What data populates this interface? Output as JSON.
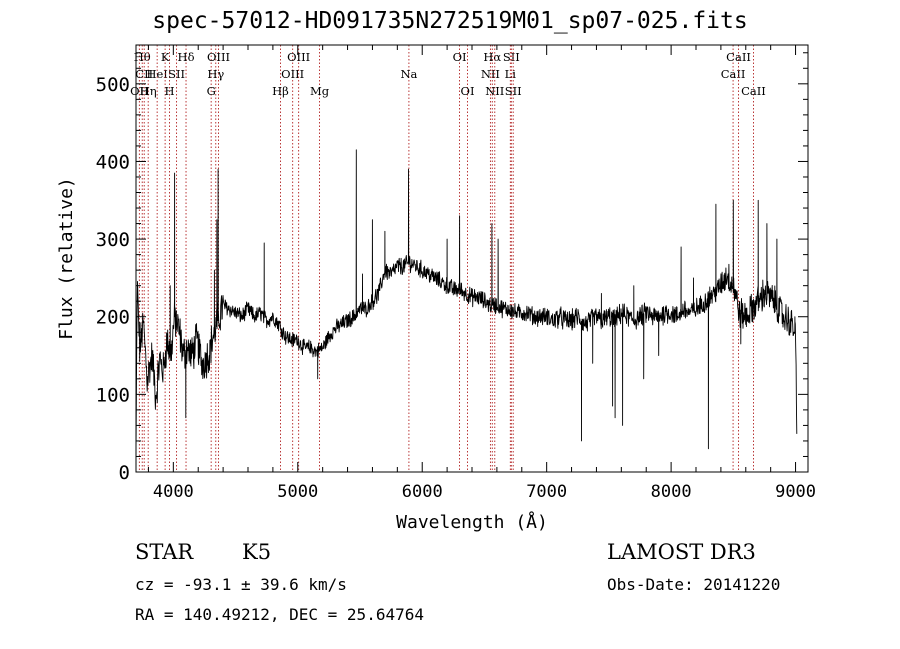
{
  "chart_data": {
    "type": "line",
    "title": "spec-57012-HD091735N272519M01_sp07-025.fits",
    "xlabel": "Wavelength (Å)",
    "ylabel": "Flux (relative)",
    "xlim": [
      3700,
      9100
    ],
    "ylim": [
      0,
      550
    ],
    "x_ticks": [
      4000,
      5000,
      6000,
      7000,
      8000,
      9000
    ],
    "x_tick_labels": [
      "4000",
      "5000",
      "6000",
      "7000",
      "8000",
      "9000"
    ],
    "y_ticks": [
      0,
      100,
      200,
      300,
      400,
      500
    ],
    "y_tick_labels": [
      "0",
      "100",
      "200",
      "300",
      "400",
      "500"
    ],
    "grid": false,
    "line_color": "#000000",
    "marker_color": "#b22222",
    "anchors": [
      [
        3700,
        20
      ],
      [
        3710,
        240
      ],
      [
        3730,
        160
      ],
      [
        3760,
        190
      ],
      [
        3790,
        120
      ],
      [
        3830,
        150
      ],
      [
        3860,
        95
      ],
      [
        3890,
        145
      ],
      [
        3920,
        130
      ],
      [
        3950,
        170
      ],
      [
        3980,
        150
      ],
      [
        4010,
        200
      ],
      [
        4050,
        180
      ],
      [
        4080,
        150
      ],
      [
        4110,
        160
      ],
      [
        4150,
        150
      ],
      [
        4190,
        170
      ],
      [
        4230,
        140
      ],
      [
        4260,
        145
      ],
      [
        4290,
        155
      ],
      [
        4320,
        175
      ],
      [
        4350,
        190
      ],
      [
        4400,
        215
      ],
      [
        4450,
        210
      ],
      [
        4500,
        205
      ],
      [
        4550,
        200
      ],
      [
        4600,
        210
      ],
      [
        4650,
        200
      ],
      [
        4700,
        205
      ],
      [
        4750,
        195
      ],
      [
        4800,
        200
      ],
      [
        4850,
        190
      ],
      [
        4900,
        175
      ],
      [
        4950,
        170
      ],
      [
        5000,
        170
      ],
      [
        5050,
        160
      ],
      [
        5100,
        160
      ],
      [
        5150,
        155
      ],
      [
        5200,
        160
      ],
      [
        5250,
        175
      ],
      [
        5300,
        185
      ],
      [
        5350,
        190
      ],
      [
        5400,
        195
      ],
      [
        5450,
        200
      ],
      [
        5500,
        210
      ],
      [
        5550,
        210
      ],
      [
        5600,
        220
      ],
      [
        5650,
        230
      ],
      [
        5700,
        260
      ],
      [
        5750,
        255
      ],
      [
        5800,
        265
      ],
      [
        5850,
        265
      ],
      [
        5900,
        270
      ],
      [
        5950,
        265
      ],
      [
        6000,
        260
      ],
      [
        6050,
        255
      ],
      [
        6100,
        250
      ],
      [
        6150,
        245
      ],
      [
        6200,
        240
      ],
      [
        6250,
        235
      ],
      [
        6300,
        235
      ],
      [
        6350,
        230
      ],
      [
        6400,
        225
      ],
      [
        6450,
        225
      ],
      [
        6500,
        220
      ],
      [
        6550,
        215
      ],
      [
        6600,
        215
      ],
      [
        6650,
        210
      ],
      [
        6700,
        210
      ],
      [
        6750,
        205
      ],
      [
        6800,
        205
      ],
      [
        6850,
        205
      ],
      [
        6900,
        200
      ],
      [
        6950,
        200
      ],
      [
        7000,
        200
      ],
      [
        7050,
        195
      ],
      [
        7100,
        200
      ],
      [
        7150,
        195
      ],
      [
        7200,
        195
      ],
      [
        7250,
        200
      ],
      [
        7300,
        190
      ],
      [
        7350,
        195
      ],
      [
        7400,
        200
      ],
      [
        7450,
        195
      ],
      [
        7500,
        200
      ],
      [
        7550,
        195
      ],
      [
        7600,
        205
      ],
      [
        7650,
        200
      ],
      [
        7700,
        195
      ],
      [
        7750,
        200
      ],
      [
        7800,
        205
      ],
      [
        7850,
        200
      ],
      [
        7900,
        200
      ],
      [
        7950,
        205
      ],
      [
        8000,
        205
      ],
      [
        8050,
        200
      ],
      [
        8100,
        210
      ],
      [
        8150,
        205
      ],
      [
        8200,
        210
      ],
      [
        8250,
        215
      ],
      [
        8300,
        225
      ],
      [
        8350,
        230
      ],
      [
        8400,
        240
      ],
      [
        8450,
        255
      ],
      [
        8500,
        240
      ],
      [
        8550,
        205
      ],
      [
        8600,
        200
      ],
      [
        8650,
        210
      ],
      [
        8700,
        220
      ],
      [
        8750,
        230
      ],
      [
        8800,
        225
      ],
      [
        8850,
        215
      ],
      [
        8900,
        200
      ],
      [
        8950,
        195
      ],
      [
        9000,
        180
      ],
      [
        9010,
        40
      ]
    ],
    "spikes": [
      [
        3975,
        240
      ],
      [
        4010,
        385
      ],
      [
        4100,
        70
      ],
      [
        4330,
        260
      ],
      [
        4350,
        325
      ],
      [
        4360,
        390
      ],
      [
        4730,
        295
      ],
      [
        5160,
        120
      ],
      [
        5470,
        415
      ],
      [
        5520,
        255
      ],
      [
        5600,
        325
      ],
      [
        5700,
        310
      ],
      [
        5890,
        390
      ],
      [
        6200,
        300
      ],
      [
        6300,
        330
      ],
      [
        6560,
        320
      ],
      [
        6610,
        300
      ],
      [
        7280,
        40
      ],
      [
        7370,
        140
      ],
      [
        7440,
        230
      ],
      [
        7530,
        85
      ],
      [
        7550,
        70
      ],
      [
        7610,
        60
      ],
      [
        7700,
        240
      ],
      [
        7780,
        120
      ],
      [
        7900,
        150
      ],
      [
        8080,
        290
      ],
      [
        8180,
        250
      ],
      [
        8300,
        30
      ],
      [
        8360,
        345
      ],
      [
        8500,
        350
      ],
      [
        8560,
        165
      ],
      [
        8700,
        350
      ],
      [
        8770,
        320
      ],
      [
        8850,
        300
      ],
      [
        8995,
        200
      ]
    ],
    "markers": [
      {
        "x": 3727,
        "label": "OII",
        "row": 3
      },
      {
        "x": 3750,
        "label": "Hθ",
        "row": 1
      },
      {
        "x": 3766,
        "label": "CII",
        "row": 2
      },
      {
        "x": 3798,
        "label": "Hη",
        "row": 3
      },
      {
        "x": 3870,
        "label": "HeI",
        "row": 2
      },
      {
        "x": 3934,
        "label": "K",
        "row": 1
      },
      {
        "x": 3969,
        "label": "H",
        "row": 3
      },
      {
        "x": 4026,
        "label": "SII",
        "row": 2
      },
      {
        "x": 4102,
        "label": "Hδ",
        "row": 1
      },
      {
        "x": 4304,
        "label": "G",
        "row": 3
      },
      {
        "x": 4341,
        "label": "Hγ",
        "row": 2
      },
      {
        "x": 4363,
        "label": "OIII",
        "row": 1
      },
      {
        "x": 4861,
        "label": "Hβ",
        "row": 3
      },
      {
        "x": 4959,
        "label": "OIII",
        "row": 2
      },
      {
        "x": 5007,
        "label": "OIII",
        "row": 1
      },
      {
        "x": 5175,
        "label": "Mg",
        "row": 3
      },
      {
        "x": 5893,
        "label": "Na",
        "row": 2
      },
      {
        "x": 6300,
        "label": "OI",
        "row": 1
      },
      {
        "x": 6364,
        "label": "OI",
        "row": 3
      },
      {
        "x": 6548,
        "label": "NII",
        "row": 2
      },
      {
        "x": 6563,
        "label": "Hα",
        "row": 1
      },
      {
        "x": 6583,
        "label": "NII",
        "row": 3
      },
      {
        "x": 6708,
        "label": "Li",
        "row": 2
      },
      {
        "x": 6716,
        "label": "SII",
        "row": 1
      },
      {
        "x": 6731,
        "label": "SII",
        "row": 3
      },
      {
        "x": 8498,
        "label": "CaII",
        "row": 2
      },
      {
        "x": 8542,
        "label": "CaII",
        "row": 1
      },
      {
        "x": 8662,
        "label": "CaII",
        "row": 3
      }
    ]
  },
  "info": {
    "object_class": "STAR",
    "subclass": "K5",
    "survey": "LAMOST DR3",
    "cz": "cz = -93.1 ± 39.6 km/s",
    "obs_date": "Obs-Date: 20141220",
    "coords": "RA = 140.49212, DEC =  25.64764"
  }
}
